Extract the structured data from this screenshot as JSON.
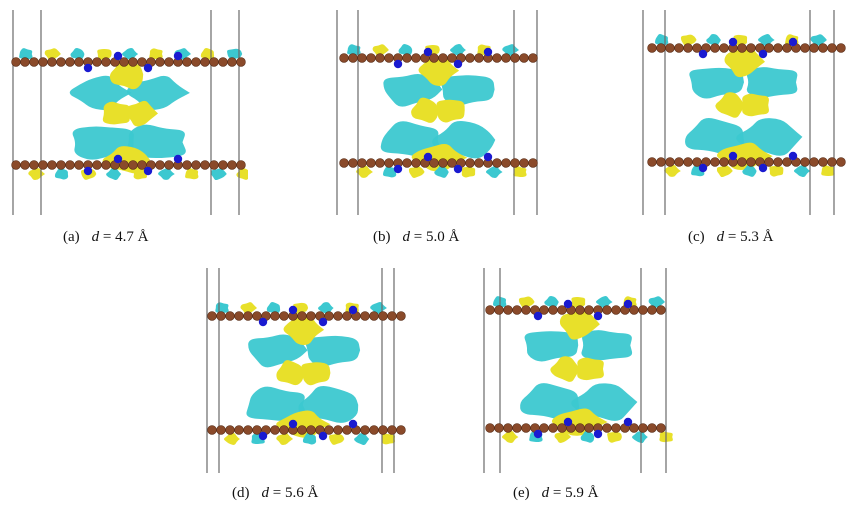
{
  "figure": {
    "panels": [
      {
        "id": "a",
        "tag": "(a)",
        "var": "d",
        "eq": "= 4.7 Å",
        "separation": 4.7
      },
      {
        "id": "b",
        "tag": "(b)",
        "var": "d",
        "eq": "= 5.0 Å",
        "separation": 5.0
      },
      {
        "id": "c",
        "tag": "(c)",
        "var": "d",
        "eq": "= 5.3 Å",
        "separation": 5.3
      },
      {
        "id": "d",
        "tag": "(d)",
        "var": "d",
        "eq": "= 5.6 Å",
        "separation": 5.6
      },
      {
        "id": "e",
        "tag": "(e)",
        "var": "d",
        "eq": "= 5.9 Å",
        "separation": 5.9
      }
    ],
    "colors": {
      "positive_isosurface": "#e8e02a",
      "negative_isosurface": "#3cc8d0",
      "carbon_atom": "#8a4a2a",
      "nitrogen_atom": "#1a1ad0",
      "cell_edge": "#6a6a6a"
    }
  }
}
